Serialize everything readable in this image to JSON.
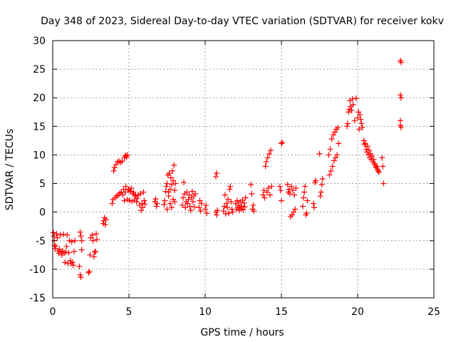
{
  "chart_data": {
    "type": "scatter",
    "title": "Day 348 of 2023, Sidereal Day-to-day VTEC variation (SDTVAR) for receiver kokv",
    "xlabel": "GPS time / hours",
    "ylabel": "SDTVAR / TECUs",
    "xlim": [
      0,
      25
    ],
    "ylim": [
      -15,
      30
    ],
    "xticks": [
      0,
      5,
      10,
      15,
      20,
      25
    ],
    "xtick_labels": [
      "0",
      "5",
      "10",
      "15",
      "20",
      "25"
    ],
    "yticks": [
      -15,
      -10,
      -5,
      0,
      5,
      10,
      15,
      20,
      25,
      30
    ],
    "ytick_labels": [
      "-15",
      "-10",
      "-5",
      "0",
      "5",
      "10",
      "15",
      "20",
      "25",
      "30"
    ],
    "grid": true,
    "marker": "+",
    "marker_color": "#ff0000",
    "series": [
      {
        "name": "SDTVAR",
        "points": [
          [
            0.05,
            -3.6
          ],
          [
            0.08,
            -4.2
          ],
          [
            0.1,
            -5.0
          ],
          [
            0.12,
            -5.8
          ],
          [
            0.15,
            -6.4
          ],
          [
            0.2,
            -6.0
          ],
          [
            0.25,
            -3.8
          ],
          [
            0.3,
            -4.5
          ],
          [
            0.35,
            -6.8
          ],
          [
            0.4,
            -7.2
          ],
          [
            0.45,
            -6.5
          ],
          [
            0.5,
            -4.0
          ],
          [
            0.55,
            -7.0
          ],
          [
            0.6,
            -7.5
          ],
          [
            0.65,
            -6.8
          ],
          [
            0.7,
            -3.9
          ],
          [
            0.75,
            -7.2
          ],
          [
            0.8,
            -8.8
          ],
          [
            0.85,
            -7.0
          ],
          [
            0.9,
            -6.0
          ],
          [
            0.95,
            -4.0
          ],
          [
            1.0,
            -9.0
          ],
          [
            1.05,
            -7.1
          ],
          [
            1.1,
            -5.0
          ],
          [
            1.15,
            -8.5
          ],
          [
            1.2,
            -9.0
          ],
          [
            1.25,
            -5.2
          ],
          [
            1.3,
            -8.8
          ],
          [
            1.35,
            -9.3
          ],
          [
            1.4,
            -6.9
          ],
          [
            1.45,
            -5.0
          ],
          [
            1.75,
            -9.5
          ],
          [
            1.8,
            -11.0
          ],
          [
            1.85,
            -11.4
          ],
          [
            1.8,
            -3.5
          ],
          [
            1.85,
            -4.2
          ],
          [
            1.9,
            -5.0
          ],
          [
            1.9,
            -6.6
          ],
          [
            2.35,
            -10.6
          ],
          [
            2.4,
            -10.4
          ],
          [
            2.45,
            -7.5
          ],
          [
            2.5,
            -4.5
          ],
          [
            2.6,
            -4.0
          ],
          [
            2.65,
            -5.0
          ],
          [
            2.7,
            -7.8
          ],
          [
            2.75,
            -7.0
          ],
          [
            2.8,
            -6.9
          ],
          [
            2.85,
            -3.8
          ],
          [
            2.9,
            -4.8
          ],
          [
            3.3,
            -2.0
          ],
          [
            3.35,
            -1.5
          ],
          [
            3.4,
            -1.0
          ],
          [
            3.45,
            -2.2
          ],
          [
            3.5,
            -1.3
          ],
          [
            3.9,
            1.5
          ],
          [
            3.95,
            2.2
          ],
          [
            4.0,
            7.2
          ],
          [
            4.05,
            7.8
          ],
          [
            4.1,
            2.5
          ],
          [
            4.15,
            8.3
          ],
          [
            4.2,
            2.8
          ],
          [
            4.25,
            8.8
          ],
          [
            4.3,
            3.0
          ],
          [
            4.35,
            8.9
          ],
          [
            4.4,
            3.3
          ],
          [
            4.45,
            8.7
          ],
          [
            4.5,
            3.5
          ],
          [
            4.55,
            8.9
          ],
          [
            4.6,
            3.0
          ],
          [
            4.7,
            9.5
          ],
          [
            4.75,
            9.8
          ],
          [
            4.8,
            9.9
          ],
          [
            4.85,
            9.6
          ],
          [
            4.9,
            10.0
          ],
          [
            4.65,
            4.0
          ],
          [
            4.7,
            2.0
          ],
          [
            4.75,
            3.5
          ],
          [
            4.8,
            4.5
          ],
          [
            4.9,
            2.2
          ],
          [
            4.95,
            4.0
          ],
          [
            5.0,
            3.8
          ],
          [
            5.05,
            2.0
          ],
          [
            5.1,
            3.6
          ],
          [
            5.15,
            4.2
          ],
          [
            5.2,
            1.9
          ],
          [
            5.25,
            3.2
          ],
          [
            5.3,
            3.5
          ],
          [
            5.35,
            2.1
          ],
          [
            5.4,
            3.0
          ],
          [
            5.45,
            2.8
          ],
          [
            5.5,
            1.8
          ],
          [
            5.55,
            2.4
          ],
          [
            5.6,
            3.0
          ],
          [
            5.7,
            1.2
          ],
          [
            5.75,
            3.2
          ],
          [
            5.8,
            0.3
          ],
          [
            5.85,
            1.5
          ],
          [
            5.9,
            0.8
          ],
          [
            5.95,
            3.5
          ],
          [
            6.0,
            2.0
          ],
          [
            6.05,
            1.4
          ],
          [
            6.7,
            1.8
          ],
          [
            6.75,
            2.3
          ],
          [
            6.8,
            1.0
          ],
          [
            6.85,
            1.5
          ],
          [
            7.3,
            1.3
          ],
          [
            7.35,
            2.0
          ],
          [
            7.4,
            3.6
          ],
          [
            7.45,
            4.5
          ],
          [
            7.5,
            0.5
          ],
          [
            7.5,
            5.0
          ],
          [
            7.55,
            6.5
          ],
          [
            7.6,
            2.8
          ],
          [
            7.6,
            3.5
          ],
          [
            7.65,
            6.8
          ],
          [
            7.7,
            1.5
          ],
          [
            7.7,
            4.0
          ],
          [
            7.75,
            6.0
          ],
          [
            7.8,
            0.8
          ],
          [
            7.8,
            4.8
          ],
          [
            7.85,
            7.2
          ],
          [
            7.9,
            2.2
          ],
          [
            7.9,
            5.5
          ],
          [
            7.95,
            8.2
          ],
          [
            8.0,
            1.8
          ],
          [
            8.0,
            3.8
          ],
          [
            8.05,
            5.0
          ],
          [
            8.5,
            1.2
          ],
          [
            8.55,
            2.5
          ],
          [
            8.6,
            5.2
          ],
          [
            8.65,
            3.2
          ],
          [
            8.7,
            0.8
          ],
          [
            8.75,
            1.8
          ],
          [
            8.8,
            3.5
          ],
          [
            8.85,
            1.5
          ],
          [
            8.9,
            2.2
          ],
          [
            8.95,
            3.0
          ],
          [
            9.0,
            1.0
          ],
          [
            9.05,
            0.3
          ],
          [
            9.1,
            2.5
          ],
          [
            9.15,
            3.6
          ],
          [
            9.2,
            1.8
          ],
          [
            9.25,
            2.8
          ],
          [
            9.3,
            0.9
          ],
          [
            9.35,
            3.2
          ],
          [
            9.6,
            0.8
          ],
          [
            9.65,
            2.0
          ],
          [
            9.7,
            0.2
          ],
          [
            9.75,
            1.5
          ],
          [
            10.0,
            0.5
          ],
          [
            10.05,
            1.2
          ],
          [
            10.1,
            -0.2
          ],
          [
            10.7,
            6.2
          ],
          [
            10.75,
            6.8
          ],
          [
            10.7,
            0.0
          ],
          [
            10.75,
            -0.5
          ],
          [
            10.8,
            0.3
          ],
          [
            11.2,
            0.2
          ],
          [
            11.25,
            1.0
          ],
          [
            11.3,
            3.0
          ],
          [
            11.35,
            -0.3
          ],
          [
            11.4,
            1.5
          ],
          [
            11.45,
            0.8
          ],
          [
            11.5,
            2.2
          ],
          [
            11.55,
            -0.2
          ],
          [
            11.6,
            4.0
          ],
          [
            11.65,
            4.5
          ],
          [
            11.7,
            1.8
          ],
          [
            11.75,
            0.5
          ],
          [
            11.8,
            0.0
          ],
          [
            12.0,
            1.5
          ],
          [
            12.05,
            0.5
          ],
          [
            12.1,
            2.0
          ],
          [
            12.15,
            0.8
          ],
          [
            12.2,
            1.2
          ],
          [
            12.25,
            0.3
          ],
          [
            12.3,
            1.8
          ],
          [
            12.35,
            0.6
          ],
          [
            12.4,
            1.0
          ],
          [
            12.45,
            2.1
          ],
          [
            12.5,
            0.4
          ],
          [
            12.55,
            1.6
          ],
          [
            12.6,
            0.9
          ],
          [
            12.65,
            2.5
          ],
          [
            13.0,
            4.8
          ],
          [
            13.05,
            3.2
          ],
          [
            13.1,
            0.5
          ],
          [
            13.15,
            1.2
          ],
          [
            13.2,
            0.2
          ],
          [
            13.8,
            3.0
          ],
          [
            13.85,
            3.8
          ],
          [
            13.9,
            2.5
          ],
          [
            13.95,
            8.0
          ],
          [
            14.0,
            8.8
          ],
          [
            14.05,
            3.5
          ],
          [
            14.1,
            9.5
          ],
          [
            14.15,
            4.2
          ],
          [
            14.2,
            10.2
          ],
          [
            14.25,
            3.0
          ],
          [
            14.3,
            10.8
          ],
          [
            14.35,
            4.5
          ],
          [
            14.9,
            4.5
          ],
          [
            14.95,
            3.8
          ],
          [
            15.0,
            2.0
          ],
          [
            15.05,
            12.2
          ],
          [
            15.0,
            12.0
          ],
          [
            15.4,
            4.8
          ],
          [
            15.45,
            3.5
          ],
          [
            15.5,
            4.0
          ],
          [
            15.55,
            3.2
          ],
          [
            15.6,
            -0.8
          ],
          [
            15.65,
            4.5
          ],
          [
            15.7,
            -0.5
          ],
          [
            15.75,
            3.8
          ],
          [
            15.8,
            0.0
          ],
          [
            15.85,
            3.0
          ],
          [
            15.9,
            0.5
          ],
          [
            15.95,
            4.2
          ],
          [
            16.4,
            1.0
          ],
          [
            16.45,
            2.5
          ],
          [
            16.5,
            3.5
          ],
          [
            16.55,
            4.5
          ],
          [
            16.6,
            -0.5
          ],
          [
            16.65,
            -0.2
          ],
          [
            16.7,
            2.0
          ],
          [
            17.1,
            1.5
          ],
          [
            17.15,
            0.8
          ],
          [
            17.2,
            5.2
          ],
          [
            17.25,
            5.5
          ],
          [
            17.5,
            10.2
          ],
          [
            17.55,
            2.8
          ],
          [
            17.6,
            3.5
          ],
          [
            17.65,
            4.8
          ],
          [
            17.7,
            5.8
          ],
          [
            18.1,
            10.0
          ],
          [
            18.15,
            6.5
          ],
          [
            18.2,
            11.0
          ],
          [
            18.25,
            7.2
          ],
          [
            18.3,
            12.8
          ],
          [
            18.35,
            8.0
          ],
          [
            18.4,
            13.5
          ],
          [
            18.45,
            9.0
          ],
          [
            18.5,
            14.0
          ],
          [
            18.55,
            9.5
          ],
          [
            18.6,
            14.5
          ],
          [
            18.65,
            10.0
          ],
          [
            18.7,
            14.8
          ],
          [
            18.75,
            12.0
          ],
          [
            19.3,
            15.0
          ],
          [
            19.35,
            15.5
          ],
          [
            19.4,
            17.5
          ],
          [
            19.45,
            18.0
          ],
          [
            19.5,
            19.5
          ],
          [
            19.55,
            18.5
          ],
          [
            19.6,
            17.8
          ],
          [
            19.65,
            19.8
          ],
          [
            19.7,
            18.8
          ],
          [
            19.8,
            16.0
          ],
          [
            19.9,
            19.9
          ],
          [
            20.0,
            16.5
          ],
          [
            20.05,
            17.5
          ],
          [
            20.1,
            14.5
          ],
          [
            20.15,
            17.0
          ],
          [
            20.2,
            16.2
          ],
          [
            20.25,
            15.5
          ],
          [
            20.3,
            14.8
          ],
          [
            20.4,
            12.5
          ],
          [
            20.45,
            11.8
          ],
          [
            20.5,
            12.0
          ],
          [
            20.55,
            11.0
          ],
          [
            20.6,
            10.5
          ],
          [
            20.65,
            11.5
          ],
          [
            20.7,
            10.0
          ],
          [
            20.75,
            10.8
          ],
          [
            20.8,
            9.5
          ],
          [
            20.85,
            10.2
          ],
          [
            20.9,
            9.2
          ],
          [
            20.95,
            9.8
          ],
          [
            21.0,
            8.8
          ],
          [
            21.05,
            9.2
          ],
          [
            21.1,
            8.5
          ],
          [
            21.15,
            8.2
          ],
          [
            21.2,
            7.8
          ],
          [
            21.25,
            8.0
          ],
          [
            21.3,
            7.5
          ],
          [
            21.35,
            7.2
          ],
          [
            21.4,
            7.0
          ],
          [
            21.6,
            9.5
          ],
          [
            21.65,
            8.0
          ],
          [
            21.7,
            5.0
          ],
          [
            22.8,
            26.5
          ],
          [
            22.85,
            26.2
          ],
          [
            22.8,
            20.5
          ],
          [
            22.85,
            20.0
          ],
          [
            22.8,
            16.0
          ],
          [
            22.8,
            15.2
          ],
          [
            22.85,
            14.8
          ]
        ]
      }
    ]
  }
}
